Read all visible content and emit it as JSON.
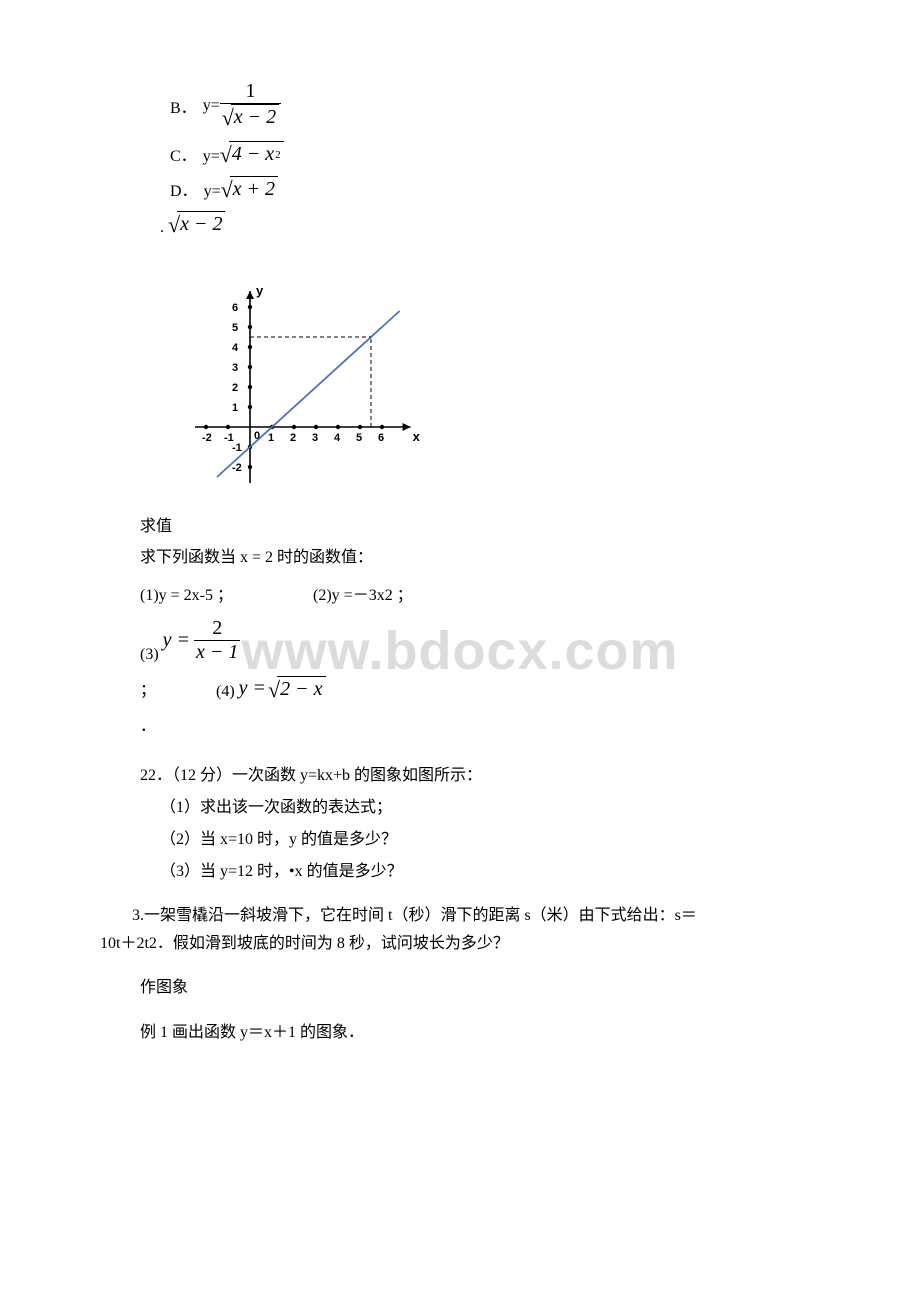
{
  "watermark": "www.bdocx.com",
  "options": {
    "b": {
      "label": "B．",
      "prefix": "y=",
      "num": "1",
      "den_inner": "x − 2"
    },
    "c": {
      "label": "C．",
      "prefix": "y=",
      "inner": "4 − x",
      "sup": "2"
    },
    "d": {
      "label": "D．",
      "prefix": "y=",
      "inner": "x + 2"
    },
    "standalone": {
      "inner": "x − 2"
    }
  },
  "graph": {
    "xlabel": "x",
    "ylabel": "y",
    "x_ticks": [
      "-2",
      "-1",
      "0",
      "1",
      "2",
      "3",
      "4",
      "5",
      "6"
    ],
    "y_ticks": [
      "-2",
      "-1",
      "1",
      "2",
      "3",
      "4",
      "5",
      "6"
    ],
    "colors": {
      "axis": "#000000",
      "line": "#5070c0",
      "dash": "#000000",
      "bg": "#ffffff"
    },
    "line_pts": [
      [
        -1.5,
        -2.5
      ],
      [
        6.8,
        5.8
      ]
    ],
    "dash_x": 5.5,
    "dash_y": 4.5,
    "arrow_size": 6
  },
  "evaluate": {
    "title": "求值",
    "prompt": "求下列函数当 x = 2 时的函数值：",
    "item1": "(1)y = 2x-5 ；",
    "item2": "(2)y =－3x2 ；",
    "item3_label": "(3)",
    "item3_lhs": "y =",
    "item3_num": "2",
    "item3_den": "x − 1",
    "item4_label": "(4)",
    "item4_lhs": "y =",
    "item4_inner": "2 − x",
    "semi": "；",
    "period": "．"
  },
  "q22": {
    "header": "22．（12 分）一次函数 y=kx+b 的图象如图所示：",
    "sub1": "（1）求出该一次函数的表达式；",
    "sub2": "（2）当 x=10 时，y 的值是多少？",
    "sub3": "（3）当 y=12 时，•x 的值是多少？"
  },
  "q3": {
    "line1": "3.一架雪橇沿一斜坡滑下，它在时间 t（秒）滑下的距离 s（米）由下式给出：s＝",
    "line2": "10t＋2t2．假如滑到坡底的时间为 8 秒，试问坡长为多少？"
  },
  "tail": {
    "title": "作图象",
    "example": "例 1 画出函数 y＝x＋1 的图象．"
  }
}
